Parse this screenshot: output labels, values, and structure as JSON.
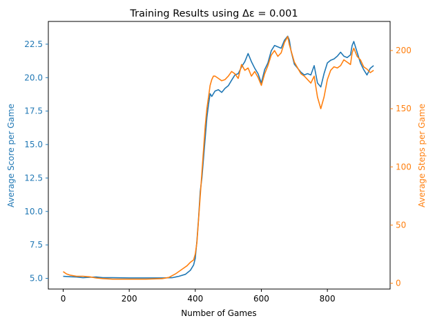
{
  "chart_data": {
    "type": "line",
    "title": "Training Results using Δε = 0.001",
    "xlabel": "Number of Games",
    "ylabel_left": "Average Score per Game",
    "ylabel_right": "Average Steps per Game",
    "xlim": [
      -45,
      990
    ],
    "ylim_left": [
      4.2,
      24.2
    ],
    "ylim_right": [
      -5,
      225
    ],
    "x_ticks": [
      0,
      200,
      400,
      600,
      800
    ],
    "y_left_ticks": [
      5.0,
      7.5,
      10.0,
      12.5,
      15.0,
      17.5,
      20.0,
      22.5
    ],
    "y_left_tick_labels": [
      "5.0",
      "7.5",
      "10.0",
      "12.5",
      "15.0",
      "17.5",
      "20.0",
      "22.5"
    ],
    "y_right_ticks": [
      0,
      50,
      100,
      150,
      200
    ],
    "grid": false,
    "colors": {
      "left": "#1f77b4",
      "right": "#ff7f0e"
    },
    "series": [
      {
        "axis": "left",
        "x": [
          0,
          20,
          40,
          60,
          80,
          100,
          120,
          150,
          200,
          250,
          300,
          330,
          350,
          370,
          385,
          395,
          400,
          405,
          410,
          415,
          420,
          425,
          430,
          435,
          440,
          445,
          450,
          455,
          460,
          470,
          480,
          490,
          500,
          510,
          520,
          530,
          540,
          550,
          560,
          570,
          580,
          590,
          600,
          610,
          620,
          630,
          640,
          650,
          660,
          670,
          680,
          685,
          690,
          700,
          710,
          720,
          730,
          740,
          750,
          760,
          770,
          780,
          790,
          800,
          810,
          820,
          830,
          840,
          850,
          860,
          870,
          875,
          880,
          890,
          900,
          910,
          920,
          930,
          940
        ],
        "values": [
          5.15,
          5.12,
          5.1,
          5.05,
          5.08,
          5.1,
          5.05,
          5.05,
          5.03,
          5.03,
          5.03,
          5.05,
          5.15,
          5.3,
          5.6,
          6.0,
          6.5,
          7.8,
          9.5,
          11.5,
          12.5,
          14.0,
          15.5,
          17.0,
          18.0,
          18.8,
          18.6,
          18.8,
          19.0,
          19.1,
          18.9,
          19.2,
          19.4,
          19.8,
          20.2,
          20.3,
          20.8,
          21.2,
          21.8,
          21.2,
          20.7,
          20.3,
          19.6,
          20.6,
          21.1,
          22.0,
          22.4,
          22.3,
          22.2,
          22.8,
          23.1,
          22.8,
          22.0,
          21.0,
          20.7,
          20.4,
          20.2,
          20.3,
          20.2,
          20.9,
          19.6,
          19.3,
          20.3,
          21.1,
          21.3,
          21.4,
          21.6,
          21.9,
          21.6,
          21.5,
          21.7,
          22.4,
          22.7,
          21.9,
          21.1,
          20.6,
          20.2,
          20.7,
          20.9
        ]
      },
      {
        "axis": "right",
        "x": [
          0,
          10,
          20,
          40,
          60,
          80,
          100,
          120,
          150,
          200,
          250,
          300,
          320,
          340,
          360,
          375,
          385,
          395,
          400,
          405,
          410,
          415,
          420,
          425,
          430,
          435,
          440,
          445,
          450,
          455,
          460,
          470,
          480,
          490,
          500,
          510,
          520,
          530,
          540,
          550,
          560,
          570,
          580,
          590,
          600,
          610,
          620,
          630,
          640,
          650,
          660,
          670,
          680,
          685,
          690,
          700,
          710,
          720,
          730,
          740,
          750,
          760,
          770,
          780,
          790,
          800,
          810,
          820,
          830,
          840,
          850,
          860,
          870,
          875,
          880,
          890,
          900,
          910,
          920,
          930,
          940
        ],
        "values": [
          10,
          8,
          7,
          6,
          6,
          5.5,
          4.5,
          4,
          3.5,
          3.5,
          3.5,
          4,
          5,
          8,
          12,
          15,
          18,
          20,
          25,
          35,
          55,
          75,
          95,
          115,
          135,
          150,
          160,
          170,
          175,
          178,
          178,
          176,
          174,
          175,
          178,
          182,
          180,
          176,
          188,
          183,
          185,
          178,
          182,
          177,
          170,
          180,
          187,
          196,
          200,
          195,
          198,
          207,
          212,
          205,
          200,
          190,
          185,
          180,
          178,
          175,
          172,
          178,
          160,
          150,
          160,
          175,
          183,
          186,
          185,
          187,
          192,
          190,
          188,
          198,
          202,
          195,
          192,
          186,
          184,
          181,
          183
        ]
      }
    ]
  }
}
